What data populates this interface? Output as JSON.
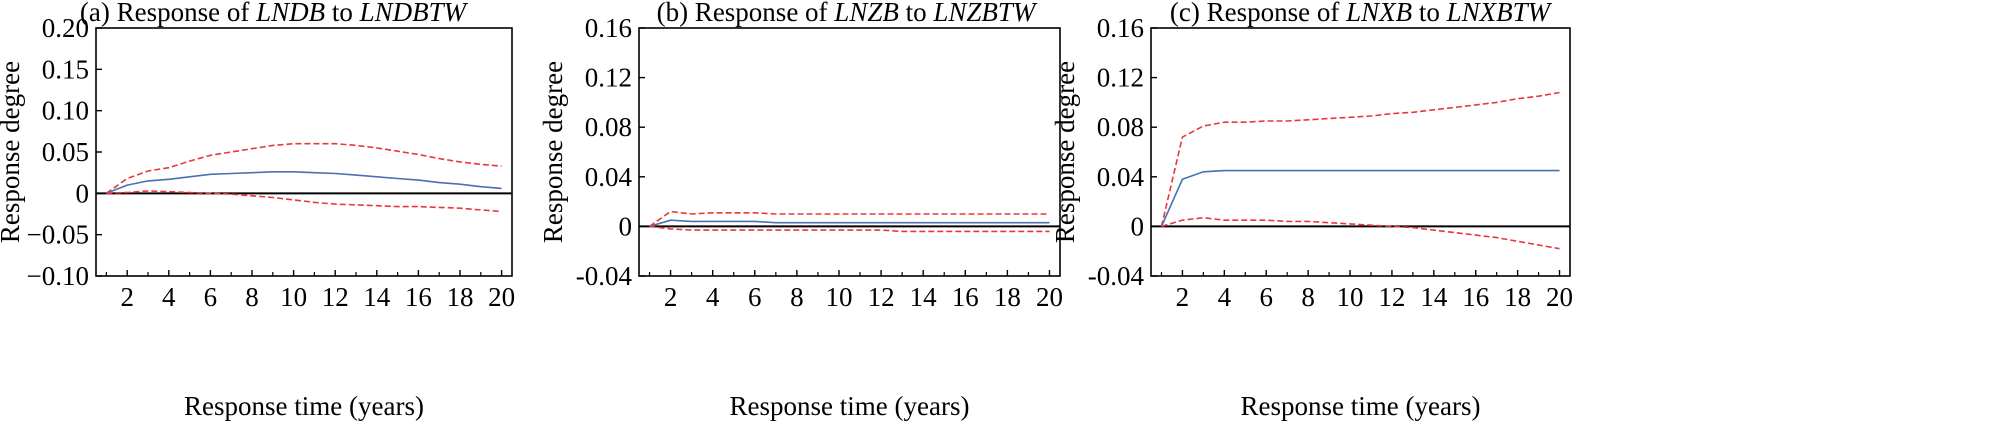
{
  "chart_data": [
    {
      "type": "line",
      "title_parts": [
        "(a) Response of ",
        "LNDB",
        " to ",
        "LNDBTW"
      ],
      "xlabel": "Response time (years)",
      "ylabel": "Response degree",
      "xlim": [
        0.5,
        20.5
      ],
      "ylim": [
        -0.1,
        0.2
      ],
      "xticks": [
        2,
        4,
        6,
        8,
        10,
        12,
        14,
        16,
        18,
        20
      ],
      "yticks": [
        -0.1,
        -0.05,
        0,
        0.05,
        0.1,
        0.15,
        0.2
      ],
      "ytick_labels": [
        "−0.10",
        "−0.05",
        "0",
        "0.05",
        "0.10",
        "0.15",
        "0.20"
      ],
      "zero_line": true,
      "x": [
        1,
        2,
        3,
        4,
        5,
        6,
        7,
        8,
        9,
        10,
        11,
        12,
        13,
        14,
        15,
        16,
        17,
        18,
        19,
        20
      ],
      "series": [
        {
          "role": "upper",
          "color": "#e8383d",
          "dashed": true,
          "values": [
            0,
            0.018,
            0.027,
            0.031,
            0.039,
            0.046,
            0.05,
            0.054,
            0.058,
            0.06,
            0.06,
            0.06,
            0.058,
            0.055,
            0.051,
            0.047,
            0.042,
            0.038,
            0.035,
            0.033
          ]
        },
        {
          "role": "response",
          "color": "#4a6fb5",
          "dashed": false,
          "values": [
            0,
            0.01,
            0.015,
            0.017,
            0.02,
            0.023,
            0.024,
            0.025,
            0.026,
            0.026,
            0.025,
            0.024,
            0.022,
            0.02,
            0.018,
            0.016,
            0.013,
            0.011,
            0.008,
            0.006
          ]
        },
        {
          "role": "lower",
          "color": "#e8383d",
          "dashed": true,
          "values": [
            0,
            0.001,
            0.003,
            0.002,
            0.001,
            0.0,
            -0.001,
            -0.003,
            -0.005,
            -0.008,
            -0.011,
            -0.013,
            -0.014,
            -0.015,
            -0.016,
            -0.016,
            -0.017,
            -0.018,
            -0.02,
            -0.022
          ]
        }
      ]
    },
    {
      "type": "line",
      "title_parts": [
        "(b) Response of ",
        "LNZB",
        " to ",
        "LNZBTW"
      ],
      "xlabel": "Response time (years)",
      "ylabel": "Response degree",
      "xlim": [
        0.5,
        20.5
      ],
      "ylim": [
        -0.04,
        0.16
      ],
      "xticks": [
        2,
        4,
        6,
        8,
        10,
        12,
        14,
        16,
        18,
        20
      ],
      "yticks": [
        -0.04,
        0,
        0.04,
        0.08,
        0.12,
        0.16
      ],
      "ytick_labels": [
        "-0.04",
        "0",
        "0.04",
        "0.08",
        "0.12",
        "0.16"
      ],
      "zero_line": true,
      "x": [
        1,
        2,
        3,
        4,
        5,
        6,
        7,
        8,
        9,
        10,
        11,
        12,
        13,
        14,
        15,
        16,
        17,
        18,
        19,
        20
      ],
      "series": [
        {
          "role": "upper",
          "color": "#e8383d",
          "dashed": true,
          "values": [
            0,
            0.012,
            0.01,
            0.011,
            0.011,
            0.011,
            0.01,
            0.01,
            0.01,
            0.01,
            0.01,
            0.01,
            0.01,
            0.01,
            0.01,
            0.01,
            0.01,
            0.01,
            0.01,
            0.01
          ]
        },
        {
          "role": "response",
          "color": "#4a6fb5",
          "dashed": false,
          "values": [
            0,
            0.005,
            0.004,
            0.004,
            0.004,
            0.004,
            0.003,
            0.003,
            0.003,
            0.003,
            0.003,
            0.003,
            0.003,
            0.003,
            0.003,
            0.003,
            0.003,
            0.003,
            0.003,
            0.003
          ]
        },
        {
          "role": "lower",
          "color": "#e8383d",
          "dashed": true,
          "values": [
            0,
            -0.002,
            -0.003,
            -0.003,
            -0.003,
            -0.003,
            -0.003,
            -0.003,
            -0.003,
            -0.003,
            -0.003,
            -0.003,
            -0.004,
            -0.004,
            -0.004,
            -0.004,
            -0.004,
            -0.004,
            -0.004,
            -0.004
          ]
        }
      ]
    },
    {
      "type": "line",
      "title_parts": [
        "(c) Response of ",
        "LNXB",
        " to ",
        "LNXBTW"
      ],
      "xlabel": "Response time (years)",
      "ylabel": "Response degree",
      "xlim": [
        0.5,
        20.5
      ],
      "ylim": [
        -0.04,
        0.16
      ],
      "xticks": [
        2,
        4,
        6,
        8,
        10,
        12,
        14,
        16,
        18,
        20
      ],
      "yticks": [
        -0.04,
        0,
        0.04,
        0.08,
        0.12,
        0.16
      ],
      "ytick_labels": [
        "-0.04",
        "0",
        "0.04",
        "0.08",
        "0.12",
        "0.16"
      ],
      "zero_line": true,
      "x": [
        1,
        2,
        3,
        4,
        5,
        6,
        7,
        8,
        9,
        10,
        11,
        12,
        13,
        14,
        15,
        16,
        17,
        18,
        19,
        20
      ],
      "series": [
        {
          "role": "upper",
          "color": "#e8383d",
          "dashed": true,
          "values": [
            0,
            0.072,
            0.081,
            0.084,
            0.084,
            0.085,
            0.085,
            0.086,
            0.087,
            0.088,
            0.089,
            0.091,
            0.092,
            0.094,
            0.096,
            0.098,
            0.1,
            0.103,
            0.105,
            0.108
          ]
        },
        {
          "role": "response",
          "color": "#4a6fb5",
          "dashed": false,
          "values": [
            0,
            0.038,
            0.044,
            0.045,
            0.045,
            0.045,
            0.045,
            0.045,
            0.045,
            0.045,
            0.045,
            0.045,
            0.045,
            0.045,
            0.045,
            0.045,
            0.045,
            0.045,
            0.045,
            0.045
          ]
        },
        {
          "role": "lower",
          "color": "#e8383d",
          "dashed": true,
          "values": [
            0,
            0.005,
            0.007,
            0.005,
            0.005,
            0.005,
            0.004,
            0.004,
            0.003,
            0.002,
            0.001,
            0.0,
            -0.001,
            -0.003,
            -0.005,
            -0.007,
            -0.009,
            -0.012,
            -0.015,
            -0.018
          ]
        }
      ]
    }
  ]
}
